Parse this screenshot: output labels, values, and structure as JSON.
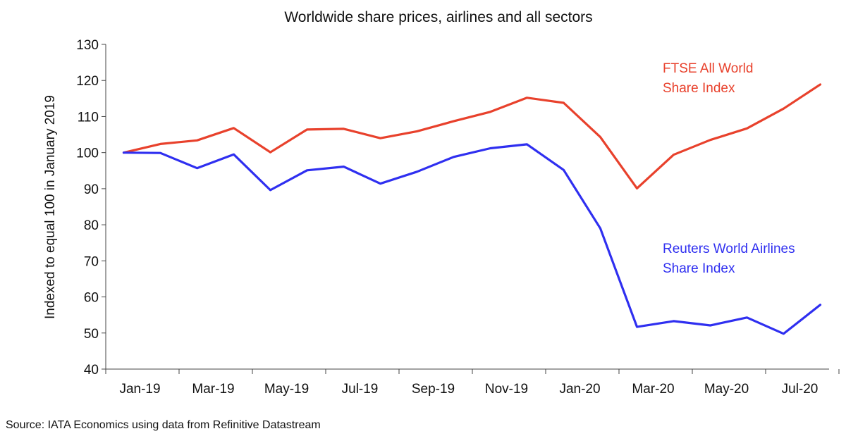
{
  "chart_data": {
    "type": "line",
    "title": "Worldwide share prices, airlines and all sectors",
    "ylabel": "Indexed to equal 100 in January 2019",
    "xlabel": "",
    "ylim": [
      40,
      130
    ],
    "yticks": [
      40,
      50,
      60,
      70,
      80,
      90,
      100,
      110,
      120,
      130
    ],
    "x": [
      "Jan-19",
      "Feb-19",
      "Mar-19",
      "Apr-19",
      "May-19",
      "Jun-19",
      "Jul-19",
      "Aug-19",
      "Sep-19",
      "Oct-19",
      "Nov-19",
      "Dec-19",
      "Jan-20",
      "Feb-20",
      "Mar-20",
      "Apr-20",
      "May-20",
      "Jun-20",
      "Jul-20",
      "Aug-20"
    ],
    "xtick_labels": [
      "Jan-19",
      "",
      "Mar-19",
      "",
      "May-19",
      "",
      "Jul-19",
      "",
      "Sep-19",
      "",
      "Nov-19",
      "",
      "Jan-20",
      "",
      "Mar-20",
      "",
      "May-20",
      "",
      "Jul-20",
      ""
    ],
    "grid": false,
    "legend": "inline labels",
    "series": [
      {
        "name": "FTSE All World Share Index",
        "label_lines": [
          "FTSE All World",
          "Share Index"
        ],
        "color": "#e8412c",
        "values": [
          100,
          102.4,
          103.4,
          106.8,
          100.1,
          106.4,
          106.6,
          104.0,
          105.9,
          108.7,
          111.3,
          115.2,
          113.8,
          104.3,
          90.1,
          99.4,
          103.5,
          106.7,
          112.2,
          118.9
        ]
      },
      {
        "name": "Reuters World Airlines Share Index",
        "label_lines": [
          "Reuters World Airlines",
          "Share Index"
        ],
        "color": "#2f2ff0",
        "values": [
          100,
          99.9,
          95.7,
          99.5,
          89.6,
          95.1,
          96.1,
          91.4,
          94.7,
          98.8,
          101.2,
          102.3,
          95.2,
          79.0,
          51.7,
          53.3,
          52.1,
          54.3,
          49.8,
          57.8
        ]
      }
    ],
    "source": "Source: IATA Economics using data from Refinitive Datastream"
  }
}
